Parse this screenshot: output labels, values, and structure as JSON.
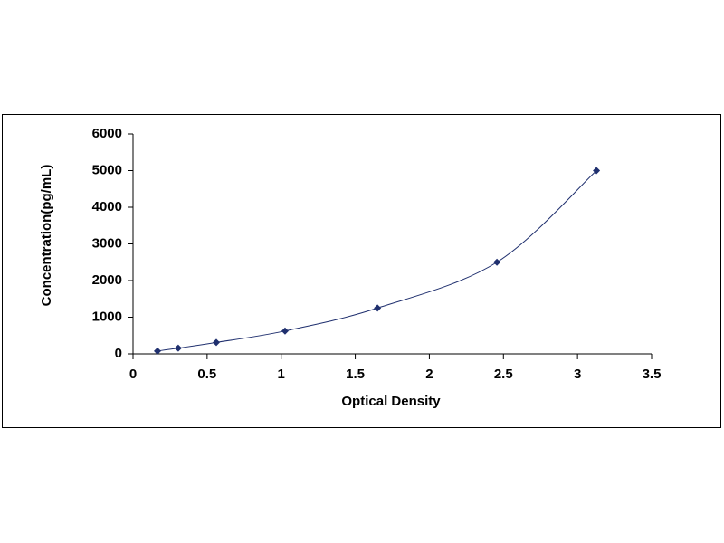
{
  "chart_data": {
    "type": "scatter",
    "x_label": "Optical Density",
    "y_label": "Concentration(pg/mL)",
    "x": [
      0.165,
      0.305,
      0.562,
      1.026,
      1.65,
      2.456,
      3.128
    ],
    "values": [
      78,
      156,
      312,
      625,
      1250,
      2500,
      5000
    ],
    "color": "#1f2f6e",
    "trendline": true,
    "grid": false,
    "xlim": [
      0,
      3.5
    ],
    "xticks": [
      0,
      0.5,
      1,
      1.5,
      2,
      2.5,
      3,
      3.5
    ],
    "ylim": [
      0,
      6000
    ],
    "yticks": [
      0,
      1000,
      2000,
      3000,
      4000,
      5000,
      6000
    ]
  }
}
